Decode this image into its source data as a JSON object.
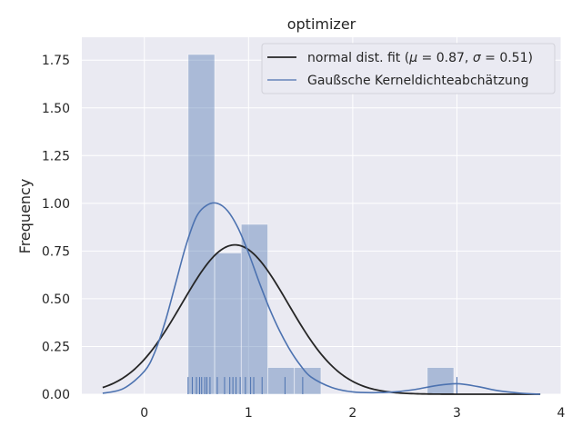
{
  "chart_data": {
    "type": "histogram",
    "title": "optimizer",
    "xlabel": "",
    "ylabel": "Frequency",
    "xlim": [
      -0.6,
      4.0
    ],
    "ylim": [
      0,
      1.87
    ],
    "x_ticks": [
      0,
      1,
      2,
      3,
      4
    ],
    "y_ticks": [
      0.0,
      0.25,
      0.5,
      0.75,
      1.0,
      1.25,
      1.5,
      1.75
    ],
    "y_tick_labels": [
      "0.00",
      "0.25",
      "0.50",
      "0.75",
      "1.00",
      "1.25",
      "1.50",
      "1.75"
    ],
    "grid": true,
    "legend_position": "top-right",
    "histogram": {
      "bin_width": 0.255,
      "bins": [
        {
          "x0": 0.42,
          "value": 1.78
        },
        {
          "x0": 0.675,
          "value": 0.74
        },
        {
          "x0": 0.93,
          "value": 0.89
        },
        {
          "x0": 1.185,
          "value": 0.14
        },
        {
          "x0": 1.44,
          "value": 0.14
        },
        {
          "x0": 1.695,
          "value": 0.0
        },
        {
          "x0": 1.95,
          "value": 0.0
        },
        {
          "x0": 2.205,
          "value": 0.0
        },
        {
          "x0": 2.46,
          "value": 0.0
        },
        {
          "x0": 2.715,
          "value": 0.14
        }
      ]
    },
    "rug": [
      0.42,
      0.46,
      0.5,
      0.53,
      0.55,
      0.58,
      0.6,
      0.63,
      0.7,
      0.77,
      0.82,
      0.85,
      0.88,
      0.92,
      0.97,
      1.02,
      1.05,
      1.13,
      1.35,
      1.52,
      3.0
    ],
    "rug_height": 0.09,
    "series": [
      {
        "name": "normal dist. fit ($\\mu=0.87,\\ \\sigma=0.51$)",
        "legend_parts": {
          "prefix": "normal dist. fit (",
          "mu_symbol": "μ",
          "mu_value": " = 0.87, ",
          "sigma_symbol": "σ",
          "sigma_value": " = 0.51)"
        },
        "kind": "normal",
        "mu": 0.87,
        "sigma": 0.51,
        "x_range": [
          -0.4,
          3.8
        ],
        "color": "#262626"
      },
      {
        "name": "Gaußsche Kerneldichteabchätzung",
        "kind": "kde",
        "x": [
          -0.4,
          -0.2,
          0.0,
          0.1,
          0.2,
          0.3,
          0.4,
          0.5,
          0.6,
          0.7,
          0.8,
          0.9,
          1.0,
          1.1,
          1.2,
          1.3,
          1.4,
          1.5,
          1.6,
          1.8,
          2.0,
          2.2,
          2.4,
          2.6,
          2.8,
          3.0,
          3.2,
          3.4,
          3.6,
          3.8
        ],
        "y": [
          0.005,
          0.03,
          0.12,
          0.22,
          0.38,
          0.58,
          0.78,
          0.93,
          0.99,
          1.0,
          0.96,
          0.87,
          0.74,
          0.59,
          0.45,
          0.33,
          0.23,
          0.15,
          0.09,
          0.035,
          0.012,
          0.008,
          0.012,
          0.025,
          0.045,
          0.055,
          0.04,
          0.018,
          0.006,
          0.0
        ],
        "color": "#4c72b0"
      }
    ],
    "colors": {
      "plot_background": "#eaeaf2",
      "grid": "#ffffff",
      "histogram": "#4c72b0",
      "kde": "#4c72b0",
      "normal": "#262626"
    }
  }
}
